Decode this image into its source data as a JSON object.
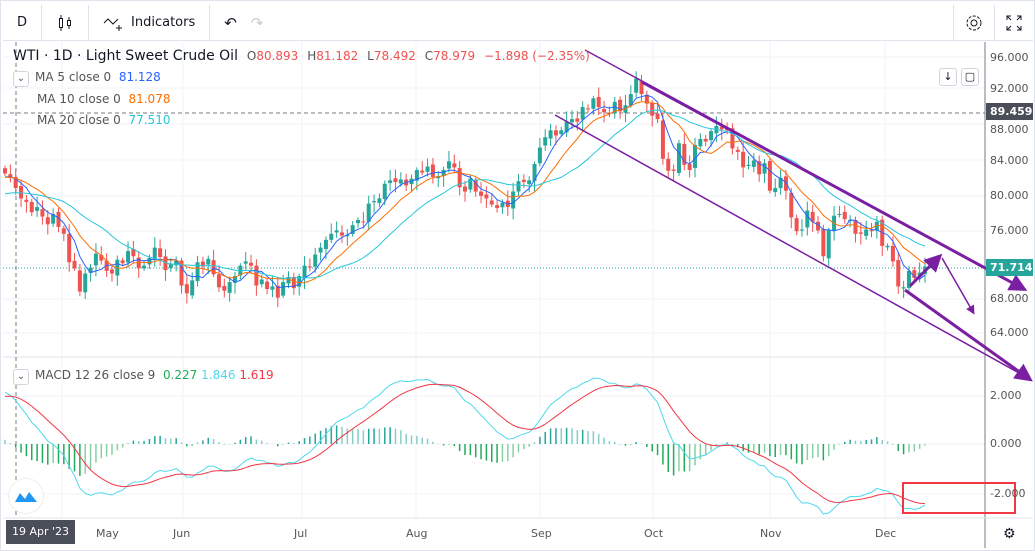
{
  "toolbar": {
    "interval": "D",
    "chart_type_icon": "candles-icon",
    "indicators_label": "Indicators",
    "undo_icon": "undo-icon",
    "redo_icon": "redo-icon",
    "settings_icon": "gear-icon",
    "fullscreen_icon": "fullscreen-icon"
  },
  "legend": {
    "symbol": "WTI · 1D · Light Sweet Crude Oil",
    "open_label": "O",
    "open": "80.893",
    "high_label": "H",
    "high": "81.182",
    "low_label": "L",
    "low": "78.492",
    "close_label": "C",
    "close": "78.979",
    "change": "−1.898 (−2.35%)",
    "ma5": {
      "label": "MA 5 close 0",
      "value": "81.128",
      "color": "#2962ff"
    },
    "ma10": {
      "label": "MA 10 close 0",
      "value": "81.078",
      "color": "#ff6d00"
    },
    "ma20": {
      "label": "MA 20 close 0",
      "value": "77.510",
      "color": "#26c6da"
    },
    "macd": {
      "label": "MACD 12 26 close 9",
      "hist": "0.227",
      "macd": "1.846",
      "signal": "1.619",
      "hist_color": "#26a69a",
      "macd_color": "#4dd9ec",
      "signal_color": "#f23645"
    }
  },
  "chart_data": [
    {
      "type": "candlestick",
      "title": "WTI · 1D · Light Sweet Crude Oil",
      "yticks": [
        "96.000",
        "92.000",
        "88.000",
        "84.000",
        "80.000",
        "76.000",
        "68.000",
        "64.000"
      ],
      "ylim": [
        64,
        96
      ],
      "xticks": [
        "May",
        "Jun",
        "Jul",
        "Aug",
        "Sep",
        "Oct",
        "Nov",
        "Dec"
      ],
      "crosshair_date": "19 Apr '23",
      "price_lines": [
        {
          "value": "89.459",
          "color": "#4a4e59",
          "style": "dashed"
        },
        {
          "value": "71.714",
          "color": "#26a69a",
          "style": "dotted"
        }
      ],
      "up_color": "#26a69a",
      "down_color": "#ef5350",
      "closes": [
        82.5,
        82.0,
        80.8,
        79.6,
        79.2,
        78.0,
        78.6,
        77.5,
        76.6,
        77.8,
        76.3,
        75.5,
        72.2,
        71.5,
        68.8,
        70.9,
        71.6,
        73.2,
        72.4,
        71.2,
        70.9,
        72.5,
        72.1,
        73.5,
        72.9,
        71.5,
        71.8,
        72.7,
        73.9,
        72.8,
        71.3,
        72.0,
        72.4,
        69.5,
        68.6,
        70.1,
        72.2,
        71.7,
        72.6,
        70.8,
        69.3,
        68.9,
        69.9,
        70.6,
        71.8,
        72.3,
        71.8,
        69.5,
        70.2,
        69.1,
        69.4,
        68.1,
        69.9,
        70.5,
        69.2,
        70.6,
        71.8,
        71.6,
        73.1,
        73.9,
        74.8,
        75.5,
        75.9,
        75.3,
        75.4,
        76.5,
        77.1,
        76.9,
        79.0,
        79.3,
        79.6,
        81.3,
        81.7,
        81.5,
        81.8,
        81.1,
        81.9,
        82.9,
        82.6,
        83.3,
        82.1,
        82.2,
        82.9,
        83.9,
        83.2,
        80.9,
        80.4,
        81.9,
        80.4,
        79.9,
        79.6,
        78.9,
        78.5,
        79.1,
        78.6,
        80.4,
        81.6,
        81.5,
        81.7,
        83.6,
        85.5,
        86.7,
        87.5,
        86.9,
        87.5,
        88.5,
        88.8,
        88.5,
        90.2,
        90.0,
        91.2,
        90.2,
        89.6,
        89.4,
        90.8,
        89.7,
        90.4,
        91.7,
        93.5,
        91.7,
        90.6,
        89.2,
        88.8,
        84.2,
        82.8,
        82.8,
        86.0,
        83.5,
        82.9,
        85.8,
        86.5,
        86.2,
        87.4,
        88.0,
        87.6,
        87.5,
        85.4,
        85.0,
        83.2,
        83.5,
        84.0,
        82.4,
        83.7,
        80.5,
        80.8,
        82.0,
        80.5,
        77.4,
        75.8,
        76.0,
        78.2,
        76.9,
        75.9,
        72.9,
        75.9,
        77.6,
        77.8,
        77.2,
        77.1,
        75.5,
        75.5,
        76.0,
        75.8,
        76.9,
        74.1,
        74.1,
        72.3,
        69.4,
        69.3,
        71.2,
        70.4,
        71.0,
        71.7
      ],
      "series": [
        {
          "name": "MA 5 close 0",
          "period": 5,
          "color": "#2962ff"
        },
        {
          "name": "MA 10 close 0",
          "period": 10,
          "color": "#ff6d00"
        },
        {
          "name": "MA 20 close 0",
          "period": 20,
          "color": "#26c6da"
        }
      ],
      "drawings": {
        "color": "#7b1fa2",
        "types": [
          "descending-channel-upper",
          "descending-channel-lower",
          "arrow-up",
          "arrow-down"
        ]
      }
    },
    {
      "type": "bar+line",
      "title": "MACD 12 26 close 9",
      "yticks": [
        "2.000",
        "0.000",
        "-2.000"
      ],
      "ylim": [
        -3,
        3
      ],
      "series": [
        {
          "name": "Histogram",
          "color": "#26a69a"
        },
        {
          "name": "MACD",
          "color": "#4dd9ec"
        },
        {
          "name": "Signal",
          "color": "#f23645"
        }
      ],
      "highlight": {
        "color": "#f23645",
        "shape": "rectangle"
      }
    }
  ]
}
